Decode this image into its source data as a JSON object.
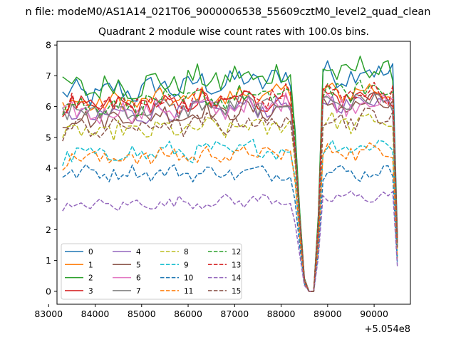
{
  "suptitle": "n file: modeM0/AS1A14_021T06_9000006538_55609cztM0_level2_quad_clean",
  "chart_data": {
    "type": "line",
    "title": "Quadrant 2 module wise count rates with 100.0s bins.",
    "xlabel": "",
    "ylabel": "",
    "x_offset_label": "+5.054e8",
    "xlim": [
      83180,
      90780
    ],
    "ylim": [
      -0.42,
      8.12
    ],
    "xticks": [
      83000,
      84000,
      85000,
      86000,
      87000,
      88000,
      89000,
      90000
    ],
    "xtick_labels": [
      "83000",
      "84000",
      "85000",
      "86000",
      "87000",
      "88000",
      "89000",
      "90000"
    ],
    "yticks": [
      0,
      1,
      2,
      3,
      4,
      5,
      6,
      7,
      8
    ],
    "ytick_labels": [
      "0",
      "1",
      "2",
      "3",
      "4",
      "5",
      "6",
      "7",
      "8"
    ],
    "grid": false,
    "legend_position": "lower-left",
    "legend_columns": 4,
    "x_start": 83300,
    "x_step": 100,
    "gap_profile": {
      "x": [
        88200,
        88300,
        88400,
        88500,
        88600,
        88700,
        88800,
        88900
      ],
      "factor": [
        1.0,
        0.75,
        0.38,
        0.06,
        0.0,
        0.0,
        0.35,
        1.0
      ]
    },
    "end_drop": {
      "x": [
        90400,
        90500
      ],
      "factor": [
        1.0,
        0.25
      ]
    },
    "series": [
      {
        "name": "0",
        "color": "#1f77b4",
        "dashed": false,
        "base": 6.35,
        "amp": 0.38,
        "trend": 0.012
      },
      {
        "name": "1",
        "color": "#ff7f0e",
        "dashed": false,
        "base": 6.05,
        "amp": 0.3,
        "trend": 0.007
      },
      {
        "name": "2",
        "color": "#2ca02c",
        "dashed": false,
        "base": 6.55,
        "amp": 0.4,
        "trend": 0.01
      },
      {
        "name": "3",
        "color": "#d62728",
        "dashed": false,
        "base": 5.95,
        "amp": 0.32,
        "trend": 0.006
      },
      {
        "name": "4",
        "color": "#9467bd",
        "dashed": false,
        "base": 5.65,
        "amp": 0.3,
        "trend": 0.008
      },
      {
        "name": "5",
        "color": "#8c564b",
        "dashed": false,
        "base": 5.55,
        "amp": 0.3,
        "trend": 0.008
      },
      {
        "name": "6",
        "color": "#e377c2",
        "dashed": false,
        "base": 5.75,
        "amp": 0.32,
        "trend": 0.006
      },
      {
        "name": "7",
        "color": "#7f7f7f",
        "dashed": false,
        "base": 5.8,
        "amp": 0.3,
        "trend": 0.006
      },
      {
        "name": "8",
        "color": "#bcbd22",
        "dashed": true,
        "base": 5.1,
        "amp": 0.3,
        "trend": 0.006
      },
      {
        "name": "9",
        "color": "#17becf",
        "dashed": true,
        "base": 4.4,
        "amp": 0.28,
        "trend": 0.005
      },
      {
        "name": "10",
        "color": "#1f77b4",
        "dashed": true,
        "base": 3.85,
        "amp": 0.22,
        "trend": 0.0
      },
      {
        "name": "11",
        "color": "#ff7f0e",
        "dashed": true,
        "base": 4.3,
        "amp": 0.28,
        "trend": 0.004
      },
      {
        "name": "12",
        "color": "#2ca02c",
        "dashed": true,
        "base": 6.0,
        "amp": 0.32,
        "trend": 0.008
      },
      {
        "name": "13",
        "color": "#d62728",
        "dashed": true,
        "base": 6.0,
        "amp": 0.32,
        "trend": 0.007
      },
      {
        "name": "14",
        "color": "#9467bd",
        "dashed": true,
        "base": 2.75,
        "amp": 0.18,
        "trend": 0.005
      },
      {
        "name": "15",
        "color": "#8c564b",
        "dashed": true,
        "base": 5.25,
        "amp": 0.3,
        "trend": 0.006
      }
    ]
  }
}
